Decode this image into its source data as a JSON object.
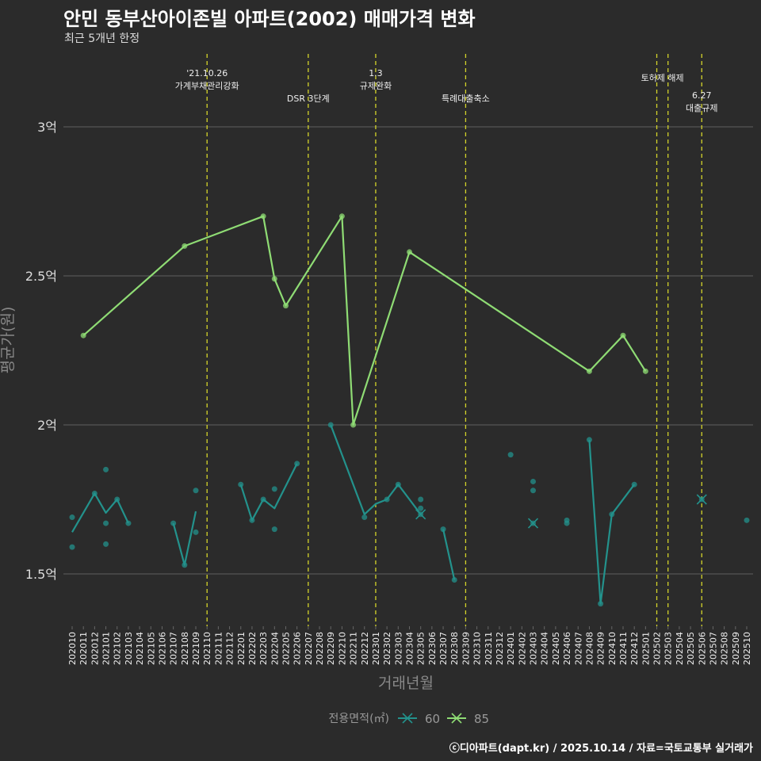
{
  "chart_data": {
    "type": "line",
    "title": "안민 동부산아이존빌 아파트(2002) 매매가격 변화",
    "subtitle": "최근 5개년 한정",
    "xlabel": "거래년월",
    "ylabel": "평균가(원)",
    "categories": [
      "202010",
      "202011",
      "202012",
      "202101",
      "202102",
      "202103",
      "202104",
      "202105",
      "202106",
      "202107",
      "202108",
      "202109",
      "202110",
      "202111",
      "202112",
      "202201",
      "202202",
      "202203",
      "202204",
      "202205",
      "202206",
      "202207",
      "202208",
      "202209",
      "202210",
      "202211",
      "202212",
      "202301",
      "202302",
      "202303",
      "202304",
      "202305",
      "202306",
      "202307",
      "202308",
      "202309",
      "202310",
      "202311",
      "202312",
      "202401",
      "202402",
      "202403",
      "202404",
      "202405",
      "202406",
      "202407",
      "202408",
      "202409",
      "202410",
      "202411",
      "202412",
      "202501",
      "202502",
      "202503",
      "202504",
      "202505",
      "202506",
      "202507",
      "202508",
      "202509",
      "202510"
    ],
    "ylim": [
      1.32,
      3.25
    ],
    "yticks": [
      {
        "value": 1.5,
        "label": "1.5억"
      },
      {
        "value": 2,
        "label": "2억"
      },
      {
        "value": 2.5,
        "label": "2.5억"
      },
      {
        "value": 3,
        "label": "3억"
      }
    ],
    "grid": true,
    "legend": {
      "title": "전용면적(㎡)",
      "position": "bottom"
    },
    "series": [
      {
        "name": "60",
        "color": "#23928c",
        "segments": [
          [
            [
              0,
              1.64
            ],
            [
              2,
              1.77
            ],
            [
              3,
              1.705
            ],
            [
              4,
              1.75
            ],
            [
              5,
              1.67
            ]
          ],
          [
            [
              9,
              1.67
            ],
            [
              10,
              1.53
            ],
            [
              11,
              1.71
            ]
          ],
          [
            [
              15,
              1.8
            ],
            [
              16,
              1.68
            ],
            [
              17,
              1.75
            ],
            [
              18,
              1.72
            ],
            [
              20,
              1.87
            ]
          ],
          [
            [
              23,
              2.0
            ],
            [
              26,
              1.7
            ],
            [
              27,
              1.735
            ],
            [
              28,
              1.75
            ],
            [
              29,
              1.8
            ],
            [
              31,
              1.7
            ]
          ],
          [
            [
              33,
              1.65
            ],
            [
              34,
              1.48
            ]
          ],
          [
            [
              46,
              1.95
            ],
            [
              47,
              1.4
            ],
            [
              48,
              1.7
            ],
            [
              50,
              1.8
            ]
          ]
        ],
        "points": [
          [
            0,
            1.69,
            "o"
          ],
          [
            0,
            1.59,
            "o"
          ],
          [
            2,
            1.77,
            "o"
          ],
          [
            3,
            1.85,
            "o"
          ],
          [
            3,
            1.67,
            "o"
          ],
          [
            3,
            1.6,
            "o"
          ],
          [
            4,
            1.75,
            "o"
          ],
          [
            5,
            1.67,
            "o"
          ],
          [
            9,
            1.67,
            "o"
          ],
          [
            10,
            1.53,
            "o"
          ],
          [
            11,
            1.78,
            "o"
          ],
          [
            11,
            1.64,
            "o"
          ],
          [
            15,
            1.8,
            "o"
          ],
          [
            16,
            1.68,
            "o"
          ],
          [
            17,
            1.75,
            "o"
          ],
          [
            18,
            1.785,
            "o"
          ],
          [
            18,
            1.65,
            "o"
          ],
          [
            20,
            1.87,
            "o"
          ],
          [
            23,
            2.0,
            "o"
          ],
          [
            26,
            1.69,
            "o"
          ],
          [
            28,
            1.75,
            "o"
          ],
          [
            29,
            1.8,
            "o"
          ],
          [
            31,
            1.75,
            "o"
          ],
          [
            31,
            1.7,
            "x"
          ],
          [
            31,
            1.72,
            "o"
          ],
          [
            33,
            1.65,
            "o"
          ],
          [
            34,
            1.48,
            "o"
          ],
          [
            39,
            1.9,
            "o"
          ],
          [
            41,
            1.81,
            "o"
          ],
          [
            41,
            1.78,
            "o"
          ],
          [
            41,
            1.67,
            "x"
          ],
          [
            44,
            1.68,
            "o"
          ],
          [
            44,
            1.67,
            "o"
          ],
          [
            46,
            1.95,
            "o"
          ],
          [
            47,
            1.4,
            "o"
          ],
          [
            48,
            1.7,
            "o"
          ],
          [
            50,
            1.8,
            "o"
          ],
          [
            56,
            1.75,
            "x"
          ],
          [
            60,
            1.68,
            "o"
          ]
        ]
      },
      {
        "name": "85",
        "color": "#8fdc74",
        "segments": [
          [
            [
              1,
              2.3
            ],
            [
              10,
              2.6
            ],
            [
              17,
              2.7
            ],
            [
              18,
              2.49
            ],
            [
              19,
              2.4
            ],
            [
              24,
              2.7
            ],
            [
              25,
              2.0
            ],
            [
              30,
              2.58
            ],
            [
              46,
              2.18
            ],
            [
              49,
              2.3
            ],
            [
              51,
              2.18
            ]
          ]
        ],
        "points": [
          [
            1,
            2.3,
            "o"
          ],
          [
            10,
            2.6,
            "o"
          ],
          [
            17,
            2.7,
            "o"
          ],
          [
            18,
            2.49,
            "o"
          ],
          [
            19,
            2.4,
            "o"
          ],
          [
            24,
            2.7,
            "o"
          ],
          [
            25,
            2.0,
            "o"
          ],
          [
            30,
            2.58,
            "o"
          ],
          [
            46,
            2.18,
            "o"
          ],
          [
            49,
            2.3,
            "o"
          ],
          [
            51,
            2.18,
            "o"
          ]
        ]
      }
    ],
    "annotations": [
      {
        "month_index": 12,
        "lines": [
          "'21.10.26",
          "가계부채관리강화"
        ],
        "row": 0
      },
      {
        "month_index": 21,
        "lines": [
          "DSR 3단계"
        ],
        "row": 2
      },
      {
        "month_index": 27,
        "lines": [
          "1.3",
          "규제완화"
        ],
        "row": 0
      },
      {
        "month_index": 35,
        "lines": [
          "특례대출축소"
        ],
        "row": 2
      },
      {
        "month_index": 52,
        "lines": [
          "토허제 해제"
        ],
        "row": 1,
        "anchor_between": 53
      },
      {
        "month_index": 53,
        "lines": []
      },
      {
        "month_index": 56,
        "lines": [
          "6.27",
          "대출규제"
        ],
        "row": 2
      }
    ],
    "annotation_line_color": "#d4d42a"
  },
  "footer": "ⓒ디아파트(dapt.kr) / 2025.10.14 / 자료=국토교통부 실거래가"
}
